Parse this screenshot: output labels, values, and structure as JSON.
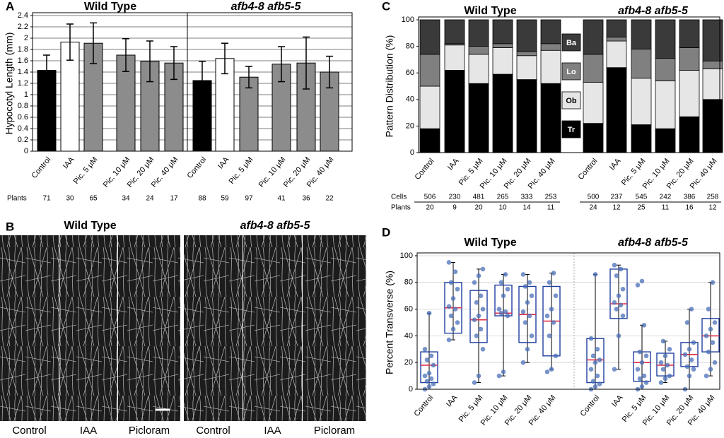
{
  "chart_data": [
    {
      "type": "bar",
      "panel": "A",
      "y_label": "Hypocotyl Length (mm)",
      "groups": [
        "Wild Type",
        "afb4-8 afb5-5"
      ],
      "categories": [
        "Control",
        "IAA",
        "Pic. 5 μM",
        "Pic. 10 μM",
        "Pic. 20 μM",
        "Pic. 40 μM",
        "Control",
        "IAA",
        "Pic. 5 μM",
        "Pic. 10 μM",
        "Pic. 20 μM",
        "Pic. 40 μM"
      ],
      "values": [
        1.43,
        1.93,
        1.91,
        1.7,
        1.59,
        1.56,
        1.25,
        1.64,
        1.31,
        1.54,
        1.56,
        1.4
      ],
      "errors": [
        0.27,
        0.32,
        0.36,
        0.29,
        0.36,
        0.29,
        0.34,
        0.27,
        0.19,
        0.31,
        0.46,
        0.28
      ],
      "colors": [
        "#000000",
        "#ffffff",
        "#8c8c8c",
        "#8c8c8c",
        "#8c8c8c",
        "#8c8c8c",
        "#000000",
        "#ffffff",
        "#8c8c8c",
        "#8c8c8c",
        "#8c8c8c",
        "#8c8c8c"
      ],
      "ylim": [
        0,
        2.4
      ],
      "yticks": [
        0,
        0.2,
        0.4,
        0.6,
        0.8,
        1,
        1.2,
        1.4,
        1.6,
        1.8,
        2,
        2.2,
        2.4
      ],
      "grid": true,
      "count_rows": [
        {
          "label": "Plants",
          "values": [
            "71",
            "30",
            "65",
            "34",
            "24",
            "17",
            "88",
            "59",
            "97",
            "41",
            "36",
            "22"
          ]
        }
      ]
    },
    {
      "type": "stacked_bar",
      "panel": "C",
      "y_label": "Pattern Distribution (%)",
      "groups": [
        "Wild Type",
        "afb4-8 afb5-5"
      ],
      "categories": [
        "Control",
        "IAA",
        "Pic. 5 μM",
        "Pic. 10 μM",
        "Pic. 20 μM",
        "Pic. 40 μM",
        "Control",
        "IAA",
        "Pic. 5 μM",
        "Pic. 10 μM",
        "Pic. 20 μM",
        "Pic. 40 μM"
      ],
      "series": [
        {
          "name": "Tr",
          "color": "#000000",
          "values": [
            18,
            62,
            52,
            59,
            55,
            52,
            22,
            64,
            21,
            18,
            27,
            40
          ]
        },
        {
          "name": "Ob",
          "color": "#e6e6e6",
          "values": [
            32,
            19,
            22,
            20,
            18,
            25,
            31,
            20,
            35,
            36,
            35,
            23
          ]
        },
        {
          "name": "Lo",
          "color": "#808080",
          "values": [
            24,
            1,
            6,
            3,
            3,
            5,
            21,
            3,
            22,
            17,
            17,
            6
          ]
        },
        {
          "name": "Ba",
          "color": "#3a3a3a",
          "values": [
            26,
            18,
            20,
            18,
            24,
            18,
            26,
            13,
            22,
            29,
            21,
            31
          ]
        }
      ],
      "ylim": [
        0,
        100
      ],
      "yticks": [
        0,
        20,
        40,
        60,
        80,
        100
      ],
      "grid": false,
      "count_rows": [
        {
          "label": "Cells",
          "values": [
            "506",
            "230",
            "481",
            "265",
            "333",
            "253",
            "500",
            "237",
            "545",
            "242",
            "386",
            "258"
          ]
        },
        {
          "label": "Plants",
          "values": [
            "20",
            "9",
            "20",
            "10",
            "14",
            "11",
            "24",
            "12",
            "25",
            "11",
            "16",
            "12"
          ]
        }
      ]
    },
    {
      "type": "box",
      "panel": "D",
      "y_label": "Percent Transverse (%)",
      "groups": [
        "Wild Type",
        "afb4-8 afb5-5"
      ],
      "categories": [
        "Control",
        "IAA",
        "Pic. 5 μM",
        "Pic. 10 μM",
        "Pic. 20 μM",
        "Pic. 40 μM",
        "Control",
        "IAA",
        "Pic. 5 μM",
        "Pic. 10 μM",
        "Pic. 20 μM",
        "Pic. 40 μM"
      ],
      "whisker_low": [
        0,
        37,
        5,
        10,
        20,
        15,
        0,
        15,
        0,
        5,
        0,
        10
      ],
      "q1": [
        5,
        42,
        35,
        55,
        35,
        25,
        5,
        53,
        6,
        10,
        17,
        28
      ],
      "median": [
        18,
        61,
        52,
        57,
        56,
        51,
        22,
        64,
        20,
        18,
        26,
        40
      ],
      "q3": [
        28,
        80,
        74,
        78,
        77,
        77,
        38,
        90,
        28,
        27,
        35,
        53
      ],
      "whisker_high": [
        57,
        95,
        90,
        86,
        86,
        87,
        86,
        93,
        48,
        36,
        60,
        80
      ],
      "points": [
        [
          0,
          2,
          4,
          6,
          8,
          10,
          12,
          18,
          22,
          25,
          30,
          57
        ],
        [
          37,
          45,
          50,
          55,
          60,
          62,
          68,
          75,
          80,
          88,
          95
        ],
        [
          5,
          10,
          30,
          40,
          45,
          52,
          55,
          60,
          65,
          70,
          80,
          85,
          90
        ],
        [
          10,
          13,
          55,
          57,
          58,
          60,
          70,
          75,
          80,
          86
        ],
        [
          20,
          30,
          40,
          50,
          55,
          58,
          65,
          70,
          77,
          80,
          86
        ],
        [
          13,
          15,
          25,
          40,
          50,
          55,
          60,
          70,
          80,
          87
        ],
        [
          0,
          2,
          4,
          6,
          10,
          15,
          20,
          22,
          25,
          30,
          38,
          86
        ],
        [
          15,
          40,
          55,
          60,
          63,
          65,
          70,
          75,
          85,
          90,
          93
        ],
        [
          0,
          2,
          5,
          8,
          10,
          15,
          20,
          25,
          28,
          48,
          78,
          81
        ],
        [
          5,
          8,
          10,
          15,
          18,
          20,
          25,
          30,
          36
        ],
        [
          0,
          10,
          15,
          17,
          22,
          26,
          30,
          35,
          50,
          60
        ],
        [
          10,
          15,
          20,
          28,
          35,
          40,
          45,
          50,
          60,
          80
        ]
      ],
      "box_color": "#1f3fa0",
      "median_color": "#e0304a",
      "point_color": "#4a6fb8",
      "ylim": [
        0,
        100
      ],
      "yticks": [
        0,
        20,
        40,
        60,
        80,
        100
      ],
      "grid": true
    }
  ],
  "micrographs": {
    "panel": "B",
    "groups": [
      {
        "title": "Wild Type",
        "captions": [
          "Control",
          "IAA",
          "Picloram"
        ]
      },
      {
        "title": "afb4-8 afb5-5",
        "captions": [
          "Control",
          "IAA",
          "Picloram"
        ]
      }
    ]
  }
}
